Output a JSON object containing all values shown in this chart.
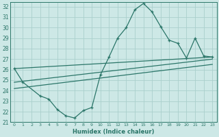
{
  "xlabel": "Humidex (Indice chaleur)",
  "ylabel": "",
  "bg_color": "#cde8e6",
  "grid_color": "#aacfcc",
  "line_color": "#2a7568",
  "xlim": [
    -0.5,
    23.5
  ],
  "ylim": [
    21,
    32.4
  ],
  "xticks": [
    0,
    1,
    2,
    3,
    4,
    5,
    6,
    7,
    8,
    9,
    10,
    11,
    12,
    13,
    14,
    15,
    16,
    17,
    18,
    19,
    20,
    21,
    22,
    23
  ],
  "yticks": [
    21,
    22,
    23,
    24,
    25,
    26,
    27,
    28,
    29,
    30,
    31,
    32
  ],
  "curve1_x": [
    0,
    1,
    3,
    4,
    5,
    6,
    7,
    8,
    9,
    10,
    11,
    12,
    13,
    14,
    15,
    16,
    17,
    18,
    19,
    20,
    21,
    22,
    23
  ],
  "curve1_y": [
    26.1,
    24.8,
    23.5,
    23.2,
    22.2,
    21.6,
    21.4,
    22.1,
    22.4,
    25.5,
    27.2,
    29.0,
    30.0,
    31.7,
    32.3,
    31.5,
    30.1,
    28.8,
    28.5,
    27.1,
    29.0,
    27.3,
    27.2
  ],
  "line1_x": [
    0,
    23
  ],
  "line1_y": [
    26.1,
    27.2
  ],
  "line2_x": [
    0,
    23
  ],
  "line2_y": [
    24.8,
    27.0
  ],
  "line3_x": [
    0,
    23
  ],
  "line3_y": [
    24.2,
    26.5
  ]
}
